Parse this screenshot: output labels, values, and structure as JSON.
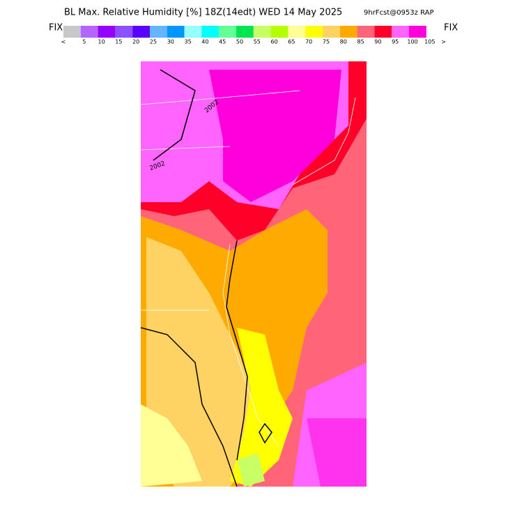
{
  "header": {
    "title": "BL Max. Relative Humidity [%] 18Z(14edt) WED 14 May 2025",
    "subtitle": "9hrFcst@0953z RAP",
    "left_label": "FIX",
    "right_label": "FIX"
  },
  "legend": {
    "colors": [
      "#c8c8c8",
      "#b464ff",
      "#9600ff",
      "#8c50ff",
      "#5a00ff",
      "#64b4ff",
      "#0096ff",
      "#96ffff",
      "#00ffff",
      "#64ff96",
      "#00e650",
      "#c8ff64",
      "#b4ff00",
      "#ffff96",
      "#ffff00",
      "#ffd264",
      "#ffaa00",
      "#ff6478",
      "#ff0028",
      "#ff64ff",
      "#ff00dc"
    ],
    "ticks": [
      "<",
      "5",
      "10",
      "15",
      "20",
      "25",
      "30",
      "35",
      "40",
      "45",
      "50",
      "55",
      "60",
      "65",
      "70",
      "75",
      "80",
      "85",
      "90",
      "95",
      "100",
      "105",
      ">"
    ]
  },
  "map": {
    "contour_labels": [
      "2002",
      "2002"
    ]
  }
}
